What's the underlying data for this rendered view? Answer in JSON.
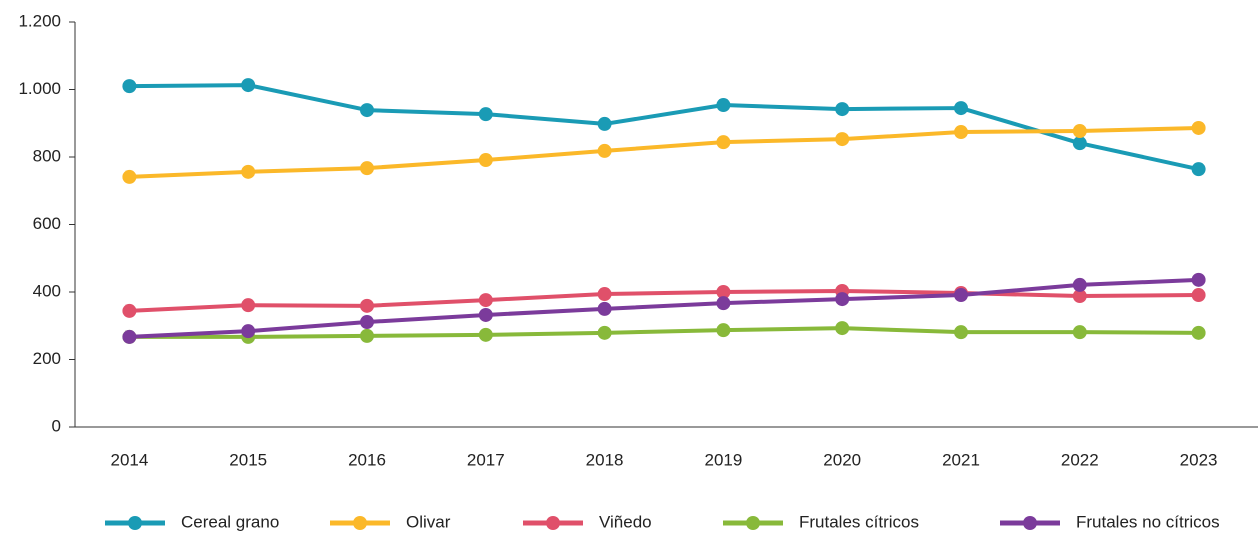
{
  "chart_data": {
    "type": "line",
    "categories": [
      "2014",
      "2015",
      "2016",
      "2017",
      "2018",
      "2019",
      "2020",
      "2021",
      "2022",
      "2023"
    ],
    "series": [
      {
        "name": "Cereal grano",
        "color": "#1a9bb5",
        "values": [
          1010,
          1013,
          939,
          927,
          898,
          954,
          942,
          945,
          841,
          764
        ]
      },
      {
        "name": "Olivar",
        "color": "#fbb829",
        "values": [
          741,
          756,
          767,
          791,
          818,
          844,
          853,
          874,
          877,
          886
        ]
      },
      {
        "name": "Viñedo",
        "color": "#e0506a",
        "values": [
          344,
          361,
          359,
          376,
          394,
          400,
          403,
          397,
          388,
          391
        ]
      },
      {
        "name": "Frutales cítricos",
        "color": "#88b93a",
        "values": [
          267,
          267,
          270,
          273,
          279,
          287,
          293,
          281,
          281,
          279
        ]
      },
      {
        "name": "Frutales no cítricos",
        "color": "#7b3b9b",
        "values": [
          267,
          284,
          311,
          332,
          350,
          367,
          379,
          391,
          421,
          436
        ]
      }
    ],
    "ylim": [
      0,
      1200
    ],
    "yticks": [
      0,
      200,
      400,
      600,
      800,
      {
        "value": 1000,
        "label": "1.000"
      },
      {
        "value": 1200,
        "label": "1.200"
      }
    ],
    "grid": false,
    "legend": "bottom"
  }
}
